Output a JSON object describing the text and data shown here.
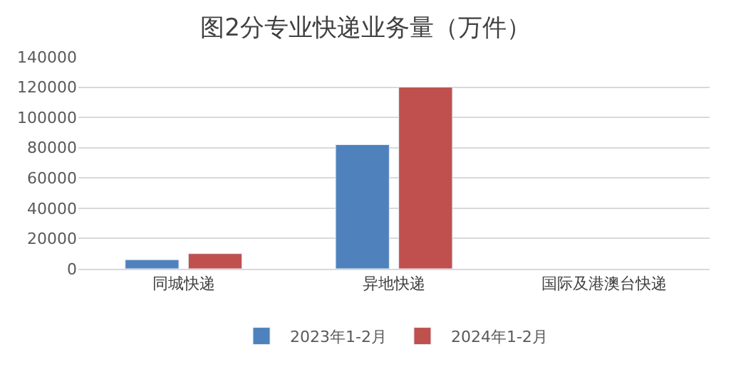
{
  "chart_data": {
    "type": "bar",
    "title": "图2分专业快递业务量（万件）",
    "categories": [
      "同城快递",
      "异地快递",
      "国际及港澳台快递"
    ],
    "series": [
      {
        "name": "2023年1-2月",
        "color": "#4f81bd",
        "values": [
          6000,
          82000,
          null
        ]
      },
      {
        "name": "2024年1-2月",
        "color": "#c0504d",
        "values": [
          10000,
          120000,
          null
        ]
      }
    ],
    "ylim": [
      0,
      140000
    ],
    "yticks": [
      0,
      20000,
      40000,
      60000,
      80000,
      100000,
      120000,
      140000
    ],
    "grid": "y",
    "legend": "bottom"
  }
}
